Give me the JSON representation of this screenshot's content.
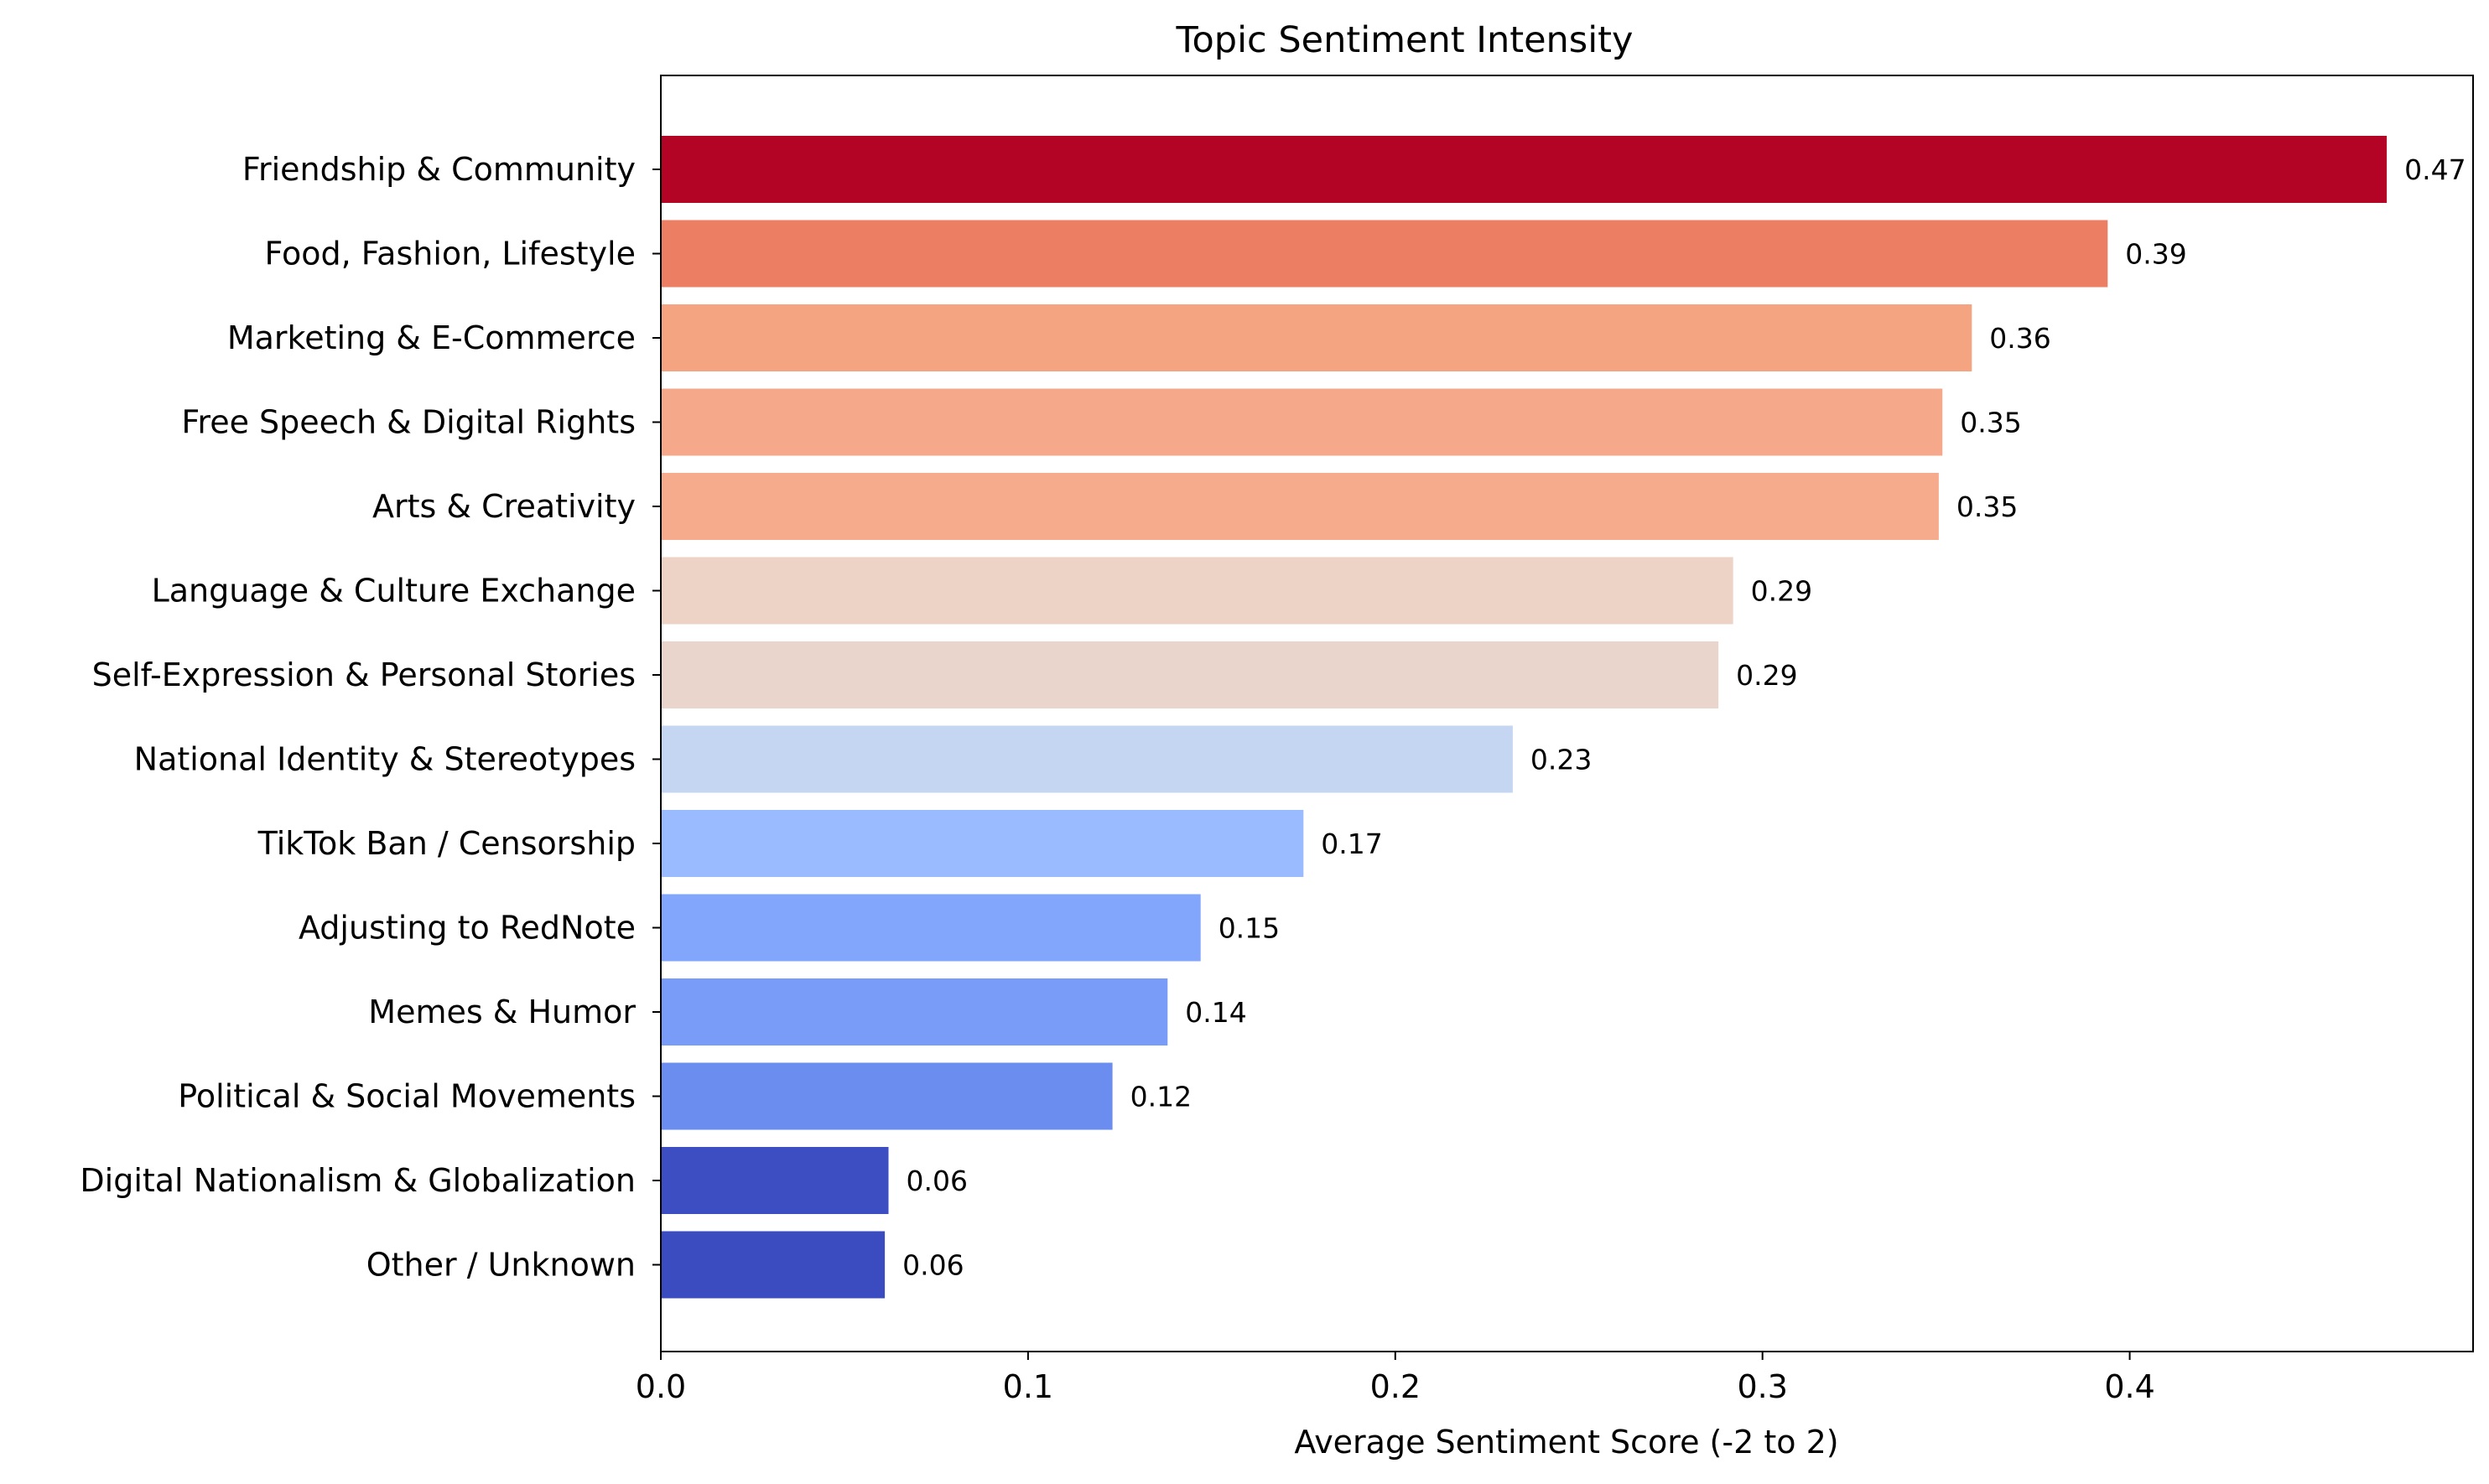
{
  "chart_data": {
    "type": "bar",
    "orientation": "horizontal",
    "title": "Topic Sentiment Intensity",
    "xlabel": "Average Sentiment Score (-2 to 2)",
    "ylabel": "",
    "xlim": [
      0,
      0.4935
    ],
    "xticks": [
      0.0,
      0.1,
      0.2,
      0.3,
      0.4
    ],
    "xtick_labels": [
      "0.0",
      "0.1",
      "0.2",
      "0.3",
      "0.4"
    ],
    "grid": false,
    "categories": [
      "Friendship & Community",
      "Food, Fashion, Lifestyle",
      "Marketing & E-Commerce",
      "Free Speech & Digital Rights",
      "Arts & Creativity",
      "Language & Culture Exchange",
      "Self-Expression & Personal Stories",
      "National Identity & Stereotypes",
      "TikTok Ban / Censorship",
      "Adjusting to RedNote",
      "Memes & Humor",
      "Political & Social Movements",
      "Digital Nationalism & Globalization",
      "Other / Unknown"
    ],
    "values": [
      0.47,
      0.394,
      0.357,
      0.349,
      0.348,
      0.292,
      0.288,
      0.232,
      0.175,
      0.147,
      0.138,
      0.123,
      0.062,
      0.061
    ],
    "value_labels": [
      "0.47",
      "0.39",
      "0.36",
      "0.35",
      "0.35",
      "0.29",
      "0.29",
      "0.23",
      "0.17",
      "0.15",
      "0.14",
      "0.12",
      "0.06",
      "0.06"
    ],
    "colors": [
      "#b40426",
      "#ec7f63",
      "#f5a482",
      "#f6a98a",
      "#f6ab8c",
      "#ecd3c5",
      "#e9d5cb",
      "#c5d6f2",
      "#9abbff",
      "#82a6fb",
      "#799cf8",
      "#6b8df0",
      "#3c4ec2",
      "#3b4cc0"
    ]
  }
}
